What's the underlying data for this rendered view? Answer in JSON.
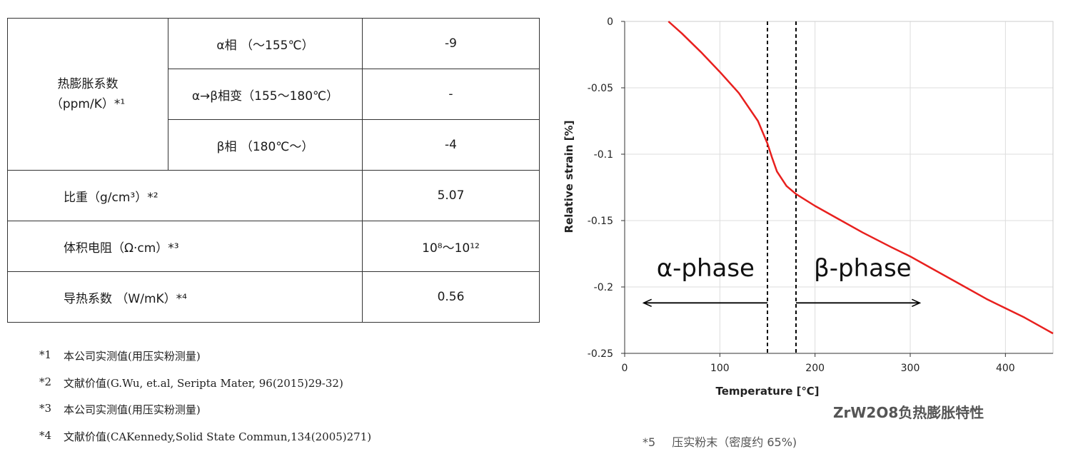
{
  "table": {
    "thermal_expansion": {
      "label_line1": "热膨胀系数",
      "label_line2": "（ppm/K）*¹",
      "rows": [
        {
          "phase": "α相 （～155℃）",
          "value": "-9"
        },
        {
          "phase": "α→β相变（155～180℃）",
          "value": "-"
        },
        {
          "phase": "β相 （180℃～）",
          "value": "-4"
        }
      ]
    },
    "density": {
      "label": "比重（g/cm³）*²",
      "value": "5.07"
    },
    "resistivity": {
      "label": "体积电阻（Ω·cm）*³",
      "value": "10⁸～10¹²"
    },
    "conductivity": {
      "label": "导热系数 （W/mK）*⁴",
      "value": "0.56"
    }
  },
  "notes": [
    {
      "mark": "*1",
      "text": "本公司实测值(用压实粉测量)"
    },
    {
      "mark": "*2",
      "text": "文献价值(G.Wu, et.al, Seripta Mater, 96(2015)29-32)"
    },
    {
      "mark": "*3",
      "text": "本公司实测值(用压实粉测量)"
    },
    {
      "mark": "*4",
      "text": "文献价值(CAKennedy,Solid State Commun,134(2005)271)"
    }
  ],
  "chart_data": {
    "type": "line",
    "title": "",
    "xlabel": "Temperature [℃]",
    "ylabel": "Relative strain [%]",
    "xlim": [
      0,
      450
    ],
    "ylim": [
      -0.25,
      0
    ],
    "xticks": [
      0,
      100,
      200,
      300,
      400
    ],
    "xtick_labels": [
      "0",
      "100",
      "200",
      "300",
      "400"
    ],
    "yticks": [
      0,
      -0.05,
      -0.1,
      -0.15,
      -0.2,
      -0.25
    ],
    "ytick_labels": [
      "0",
      "-0.05",
      "-0.1",
      "-0.15",
      "-0.2",
      "-0.25"
    ],
    "grid": true,
    "series": [
      {
        "color": "#e8201e",
        "x": [
          46,
          60,
          80,
          100,
          120,
          140,
          150,
          155,
          160,
          170,
          180,
          200,
          220,
          250,
          280,
          300,
          320,
          350,
          380,
          400,
          420,
          440,
          450
        ],
        "y": [
          0,
          -0.009,
          -0.023,
          -0.038,
          -0.054,
          -0.075,
          -0.092,
          -0.103,
          -0.113,
          -0.124,
          -0.13,
          -0.139,
          -0.147,
          -0.159,
          -0.17,
          -0.177,
          -0.185,
          -0.197,
          -0.209,
          -0.216,
          -0.223,
          -0.231,
          -0.235
        ]
      }
    ],
    "vlines": [
      150,
      180
    ],
    "annotations": [
      {
        "text": "α-phase",
        "x": 85,
        "y": -0.192
      },
      {
        "text": "β-phase",
        "x": 250,
        "y": -0.192
      }
    ],
    "arrows": [
      {
        "from": 150,
        "to": 20,
        "y": -0.212
      },
      {
        "from": 180,
        "to": 310,
        "y": -0.212
      }
    ]
  },
  "caption": "ZrW2O8负热膨胀特性",
  "footnote5": {
    "mark": "*5",
    "text": "压实粉末（密度约 65%)"
  }
}
